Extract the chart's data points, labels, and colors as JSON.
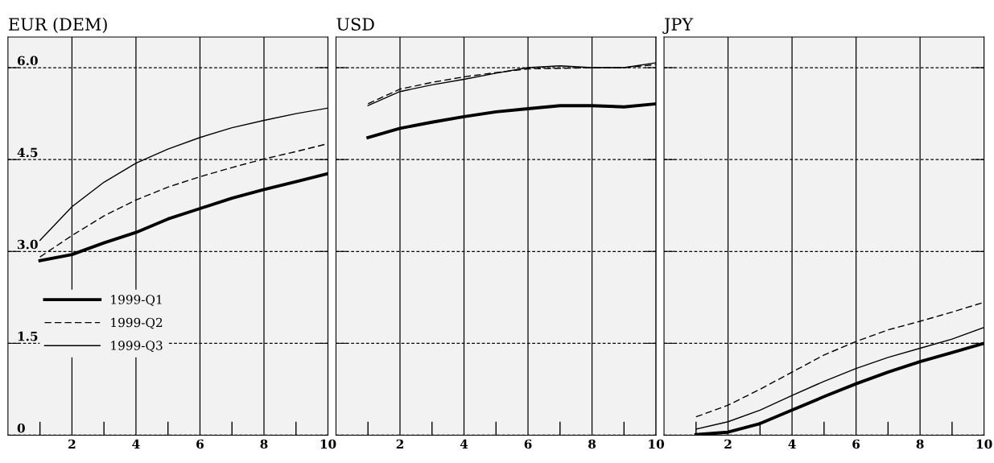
{
  "chart_data": [
    {
      "type": "line",
      "title": "EUR (DEM)",
      "x": [
        1,
        2,
        3,
        4,
        5,
        6,
        7,
        8,
        9,
        10
      ],
      "xlim": [
        0,
        10
      ],
      "xticks": [
        2,
        4,
        6,
        8,
        10
      ],
      "ylim": [
        0,
        6.5
      ],
      "yticks": [
        0,
        {
          "value": 1.5,
          "label": "1.5"
        },
        {
          "value": 3,
          "label": "3.0"
        },
        {
          "value": 4.5,
          "label": "4.5"
        },
        {
          "value": 6,
          "label": "6.0"
        }
      ],
      "grid": true,
      "legend": "bottom left",
      "series": [
        {
          "name": "1999-Q1",
          "color": "#000000",
          "line_style": "solid",
          "values": [
            2.85,
            2.95,
            3.14,
            3.31,
            3.53,
            3.7,
            3.87,
            4.01,
            4.14,
            4.27
          ]
        },
        {
          "name": "1999-Q2",
          "color": "#000000",
          "line_style": "dashed",
          "values": [
            2.91,
            3.26,
            3.58,
            3.84,
            4.05,
            4.22,
            4.37,
            4.51,
            4.63,
            4.76
          ]
        },
        {
          "name": "1999-Q3",
          "color": "#000000",
          "line_style": "solid",
          "values": [
            3.18,
            3.73,
            4.13,
            4.44,
            4.67,
            4.86,
            5.02,
            5.14,
            5.25,
            5.34
          ]
        }
      ]
    },
    {
      "type": "line",
      "title": "USD",
      "x": [
        1,
        2,
        3,
        4,
        5,
        6,
        7,
        8,
        9,
        10
      ],
      "xlim": [
        0,
        10
      ],
      "xticks": [
        2,
        4,
        6,
        8,
        10
      ],
      "ylim": [
        0,
        6.5
      ],
      "yticks": [
        0,
        1.5,
        3,
        4.5,
        6
      ],
      "grid": true,
      "tick_labels": "x",
      "series": [
        {
          "color": "#000000",
          "line_style": "solid",
          "values": [
            4.86,
            5.01,
            5.11,
            5.2,
            5.28,
            5.33,
            5.38,
            5.38,
            5.36,
            5.41
          ]
        },
        {
          "color": "#000000",
          "line_style": "dashed",
          "values": [
            5.41,
            5.65,
            5.76,
            5.85,
            5.92,
            5.98,
            5.99,
            6.0,
            6.0,
            6.05
          ]
        },
        {
          "color": "#000000",
          "line_style": "solid",
          "values": [
            5.38,
            5.61,
            5.72,
            5.81,
            5.91,
            6.0,
            6.03,
            6.0,
            6.0,
            6.08
          ]
        }
      ]
    },
    {
      "type": "line",
      "title": "JPY",
      "x": [
        1,
        2,
        3,
        4,
        5,
        6,
        7,
        8,
        9,
        10
      ],
      "xlim": [
        0,
        10
      ],
      "xticks": [
        2,
        4,
        6,
        8,
        10
      ],
      "ylim": [
        0,
        6.5
      ],
      "yticks": [
        0,
        1.5,
        3,
        4.5,
        6
      ],
      "grid": true,
      "tick_labels": "x",
      "series": [
        {
          "color": "#000000",
          "line_style": "solid",
          "values": [
            0.01,
            0.05,
            0.19,
            0.41,
            0.63,
            0.84,
            1.03,
            1.2,
            1.35,
            1.5
          ]
        },
        {
          "color": "#000000",
          "line_style": "dashed",
          "values": [
            0.3,
            0.49,
            0.75,
            1.03,
            1.31,
            1.53,
            1.72,
            1.86,
            2.01,
            2.17
          ]
        },
        {
          "color": "#000000",
          "line_style": "solid",
          "values": [
            0.1,
            0.22,
            0.41,
            0.65,
            0.88,
            1.09,
            1.27,
            1.42,
            1.57,
            1.76
          ]
        }
      ]
    }
  ]
}
